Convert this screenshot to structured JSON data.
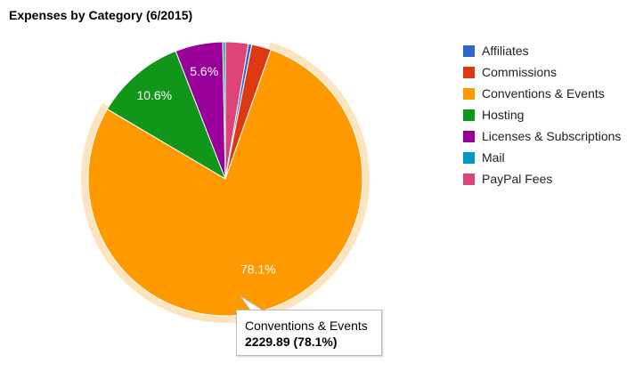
{
  "chart_data": {
    "type": "pie",
    "title": "Expenses by Category (6/2015)",
    "slices": [
      {
        "name": "Affiliates",
        "percent": 0.4,
        "color": "#3366cc",
        "label": ""
      },
      {
        "name": "Commissions",
        "percent": 2.3,
        "color": "#dc3912",
        "label": ""
      },
      {
        "name": "Conventions & Events",
        "percent": 78.1,
        "color": "#ff9900",
        "label": "78.1%"
      },
      {
        "name": "Hosting",
        "percent": 10.6,
        "color": "#109618",
        "label": "10.6%"
      },
      {
        "name": "Licenses & Subscriptions",
        "percent": 5.6,
        "color": "#990099",
        "label": "5.6%"
      },
      {
        "name": "Mail",
        "percent": 0.3,
        "color": "#0099c6",
        "label": ""
      },
      {
        "name": "PayPal Fees",
        "percent": 2.7,
        "color": "#dd4477",
        "label": ""
      }
    ],
    "start_slice": "PayPal Fees",
    "direction": "clockwise",
    "highlighted_slice": "Conventions & Events",
    "highlight_color": "#fde4bf",
    "legend_position": "right",
    "tooltip": {
      "name": "Conventions & Events",
      "value_text": "2229.89 (78.1%)"
    }
  }
}
